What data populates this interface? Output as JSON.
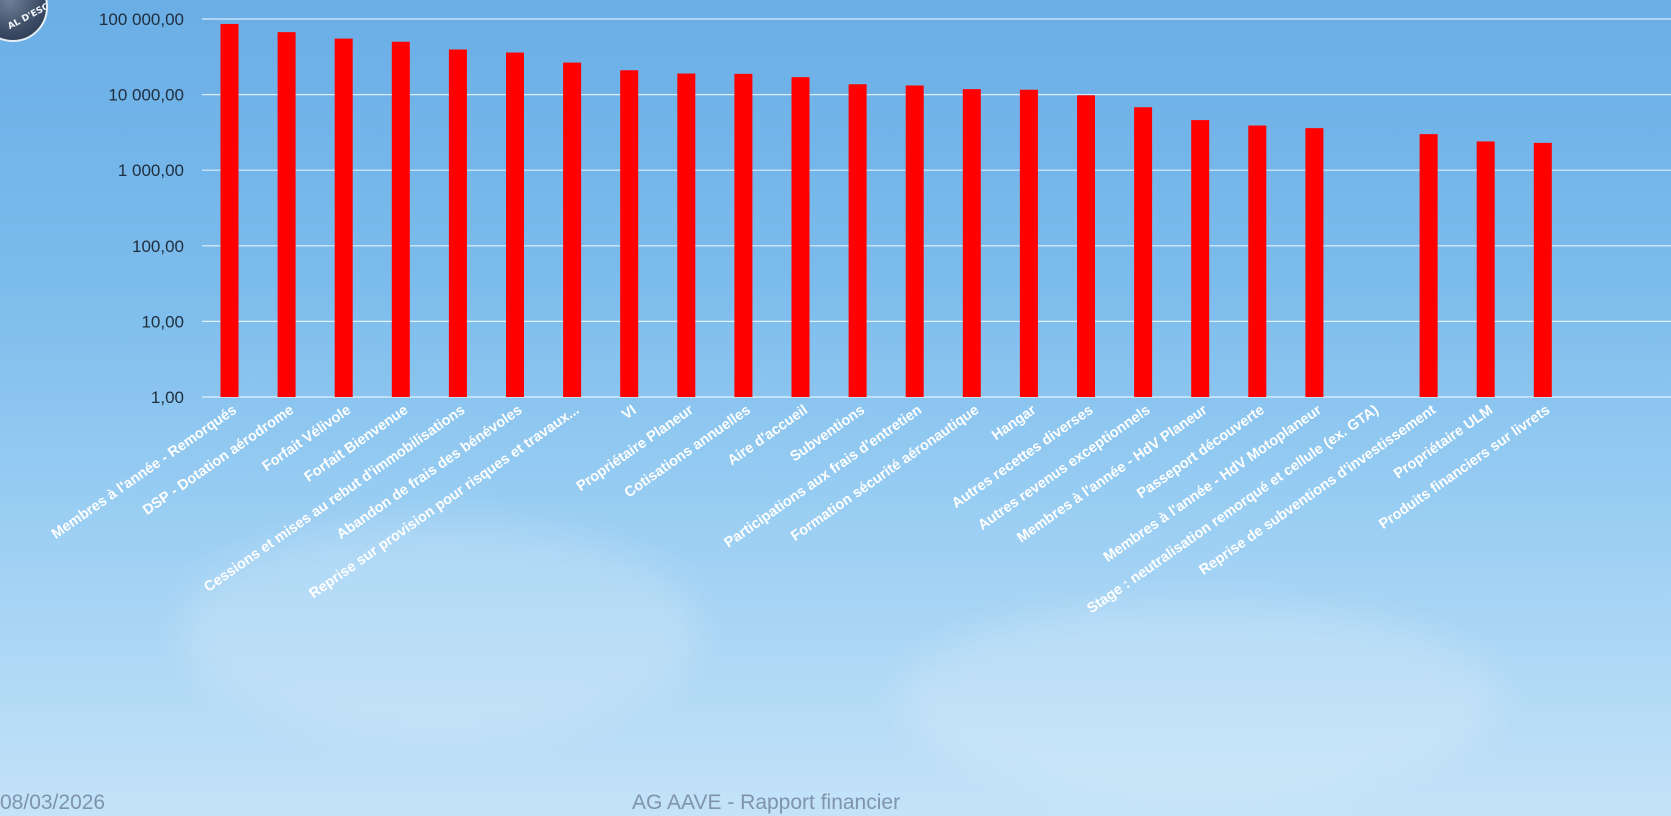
{
  "logo_text": "AL D'ESC",
  "footer": {
    "date": "08/03/2026",
    "title": "AG AAVE - Rapport financier"
  },
  "colors": {
    "bar": "#ff0000",
    "grid": "#ffffff",
    "text": "#1f2d3d"
  },
  "chart_data": {
    "type": "bar",
    "title": "",
    "xlabel": "",
    "ylabel": "",
    "yscale": "log",
    "ylim": [
      1,
      100000
    ],
    "yticks": [
      1,
      10,
      100,
      1000,
      10000,
      100000
    ],
    "ytick_labels": [
      "1,00",
      "10,00",
      "100,00",
      "1 000,00",
      "10 000,00",
      "100 000,00"
    ],
    "grid": true,
    "categories": [
      "Membres à l'année - Remorqués",
      "DSP - Dotation aérodrome",
      "Forfait Vélivole",
      "Forfait Bienvenue",
      "Cessions et mises au rebut d'immobilisations",
      "Abandon de frais des bénévoles",
      "Reprise sur provision pour risques et travaux...",
      "VI",
      "Propriétaire Planeur",
      "Cotisations annuelles",
      "Aire d'accueil",
      "Subventions",
      "Participations aux frais d'entretien",
      "Formation sécurité aéronautique",
      "Hangar",
      "Autres recettes diverses",
      "Autres revenus exceptionnels",
      "Membres à l'année - HdV Planeur",
      "Passeport découverte",
      "Membres à l'année - HdV Motoplaneur",
      "Stage : neutralisation remorqué et cellule (ex. GTA)",
      "Reprise de subventions d'investissement",
      "Propriétaire ULM",
      "Produits financiers sur livrets"
    ],
    "values": [
      86000,
      67000,
      55000,
      50000,
      39500,
      36000,
      26500,
      21000,
      19000,
      18800,
      17000,
      13700,
      13200,
      11800,
      11600,
      9800,
      6800,
      4600,
      3900,
      3600,
      null,
      3000,
      2400,
      2300
    ]
  }
}
